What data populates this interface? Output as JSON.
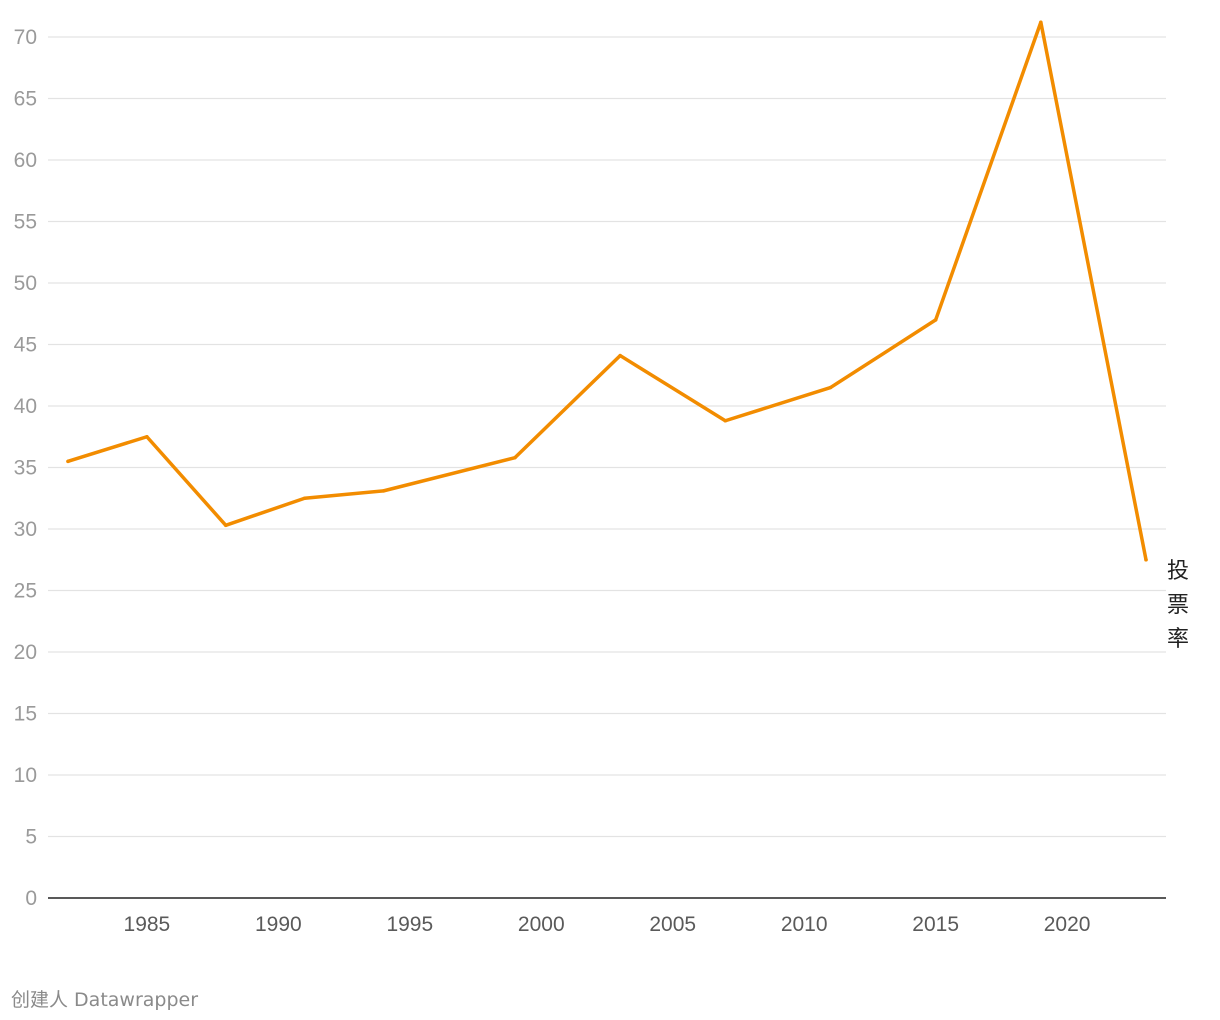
{
  "chart_data": {
    "type": "line",
    "series": [
      {
        "name": "投票率",
        "color": "#f28c00",
        "points": [
          {
            "x": 1982,
            "y": 35.5
          },
          {
            "x": 1985,
            "y": 37.5
          },
          {
            "x": 1988,
            "y": 30.3
          },
          {
            "x": 1991,
            "y": 32.5
          },
          {
            "x": 1994,
            "y": 33.1
          },
          {
            "x": 1999,
            "y": 35.8
          },
          {
            "x": 2003,
            "y": 44.1
          },
          {
            "x": 2007,
            "y": 38.8
          },
          {
            "x": 2011,
            "y": 41.5
          },
          {
            "x": 2015,
            "y": 47.0
          },
          {
            "x": 2019,
            "y": 71.2
          },
          {
            "x": 2023,
            "y": 27.5
          }
        ]
      }
    ],
    "x_ticks": [
      "1985",
      "1990",
      "1995",
      "2000",
      "2005",
      "2010",
      "2015",
      "2020"
    ],
    "y_ticks": [
      "0",
      "5",
      "10",
      "15",
      "20",
      "25",
      "30",
      "35",
      "40",
      "45",
      "50",
      "55",
      "60",
      "65",
      "70"
    ],
    "xlim": [
      1982,
      2023
    ],
    "ylim": [
      0,
      70
    ],
    "grid": true,
    "legend": "direct label at line end",
    "title": "",
    "xlabel": "",
    "ylabel": ""
  },
  "footer": {
    "credit": "创建人 Datawrapper"
  }
}
